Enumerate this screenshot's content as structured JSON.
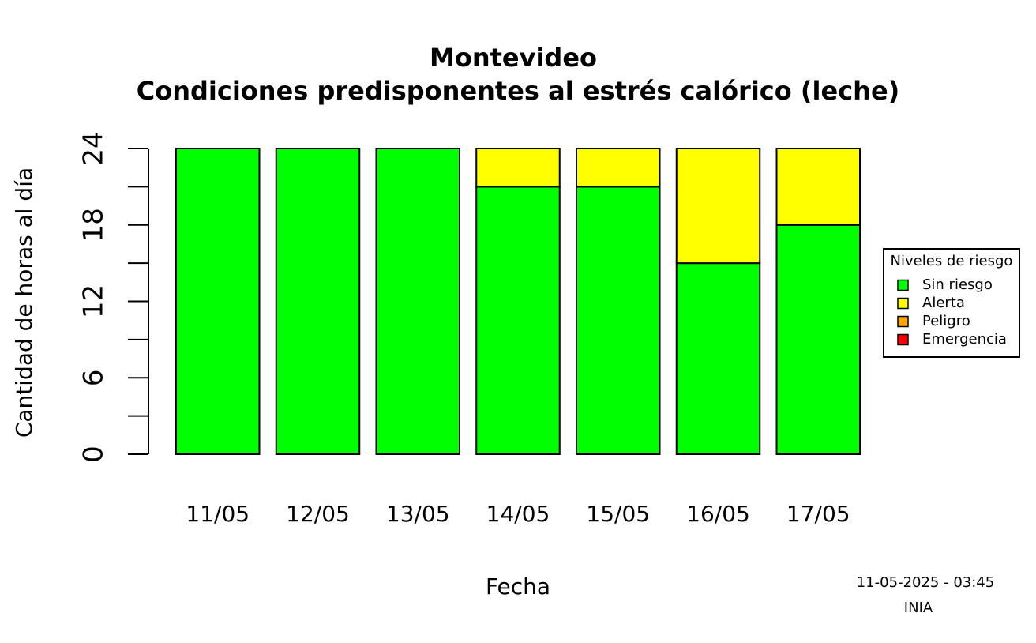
{
  "chart_data": {
    "type": "stacked_bar",
    "title": "Montevideo",
    "subtitle": "Condiciones predisponentes al estrés calórico (leche)",
    "xlabel": "Fecha",
    "ylabel": "Cantidad de horas al día",
    "categories": [
      "11/05",
      "12/05",
      "13/05",
      "14/05",
      "15/05",
      "16/05",
      "17/05"
    ],
    "series": [
      {
        "name": "Sin riesgo",
        "color": "#00ff00",
        "values": [
          24,
          24,
          24,
          21,
          21,
          15,
          18
        ]
      },
      {
        "name": "Alerta",
        "color": "#ffff00",
        "values": [
          0,
          0,
          0,
          3,
          3,
          9,
          6
        ]
      },
      {
        "name": "Peligro",
        "color": "#ffa500",
        "values": [
          0,
          0,
          0,
          0,
          0,
          0,
          0
        ]
      },
      {
        "name": "Emergencia",
        "color": "#ff0000",
        "values": [
          0,
          0,
          0,
          0,
          0,
          0,
          0
        ]
      }
    ],
    "legend_title": "Niveles de riesgo",
    "legend": "right",
    "ylim": [
      0,
      24
    ],
    "yticks": [
      0,
      6,
      12,
      18,
      24
    ],
    "yminor_ticks": [
      3,
      9,
      15,
      21
    ],
    "annotations": [
      "11-05-2025 - 03:45",
      "INIA"
    ]
  }
}
